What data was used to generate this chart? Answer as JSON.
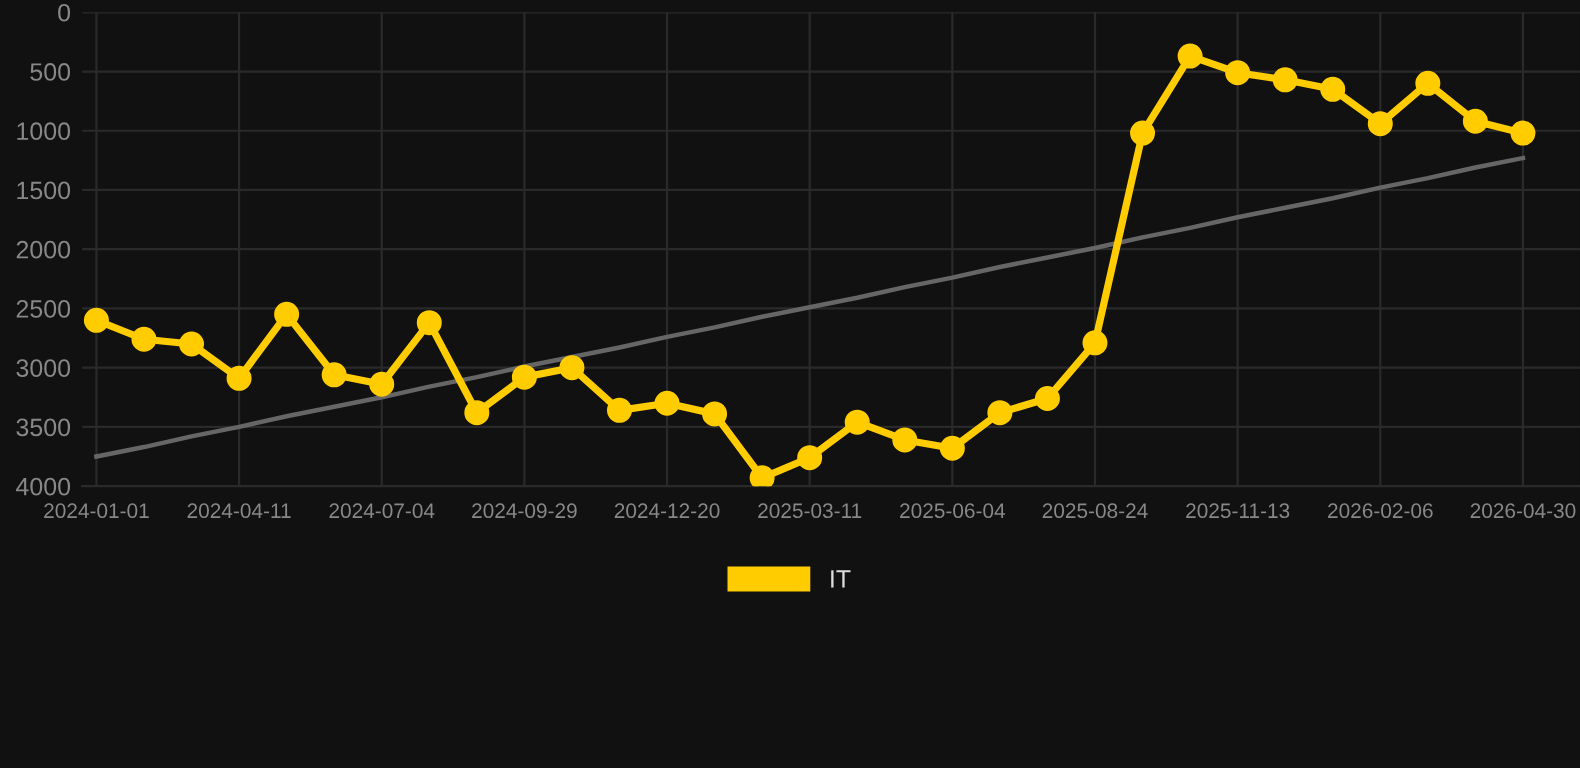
{
  "chart_data": {
    "type": "line",
    "categories": [
      "2024-01-01",
      null,
      null,
      "2024-04-11",
      null,
      null,
      "2024-07-04",
      null,
      null,
      "2024-09-29",
      null,
      null,
      "2024-12-20",
      null,
      null,
      "2025-03-11",
      null,
      null,
      "2025-06-04",
      null,
      null,
      "2025-08-24",
      null,
      null,
      "2025-11-13",
      null,
      null,
      "2026-02-06",
      null,
      null,
      "2026-04-30"
    ],
    "series": [
      {
        "name": "IT",
        "color": "#ffcc00",
        "marker": "circle",
        "values": [
          2600,
          2760,
          2800,
          3090,
          2550,
          3060,
          3140,
          2620,
          3380,
          3080,
          3000,
          3360,
          3300,
          3390,
          3930,
          3760,
          3460,
          3610,
          3680,
          3380,
          3260,
          2790,
          1020,
          370,
          510,
          570,
          650,
          940,
          600,
          920,
          1020
        ]
      },
      {
        "type": "line",
        "color": "#666666",
        "marker": "none",
        "values": [
          3750,
          3670,
          3580,
          3500,
          3410,
          3330,
          3250,
          3160,
          3080,
          2990,
          2910,
          2830,
          2740,
          2660,
          2570,
          2490,
          2410,
          2320,
          2240,
          2150,
          2070,
          1990,
          1900,
          1820,
          1730,
          1650,
          1570,
          1480,
          1400,
          1310,
          1230
        ]
      }
    ],
    "ylim": [
      4000,
      0
    ],
    "yticks": [
      0,
      500,
      1000,
      1500,
      2000,
      2500,
      3000,
      3500,
      4000
    ],
    "grid": true,
    "legend": "bottom",
    "line_style": "solid"
  }
}
